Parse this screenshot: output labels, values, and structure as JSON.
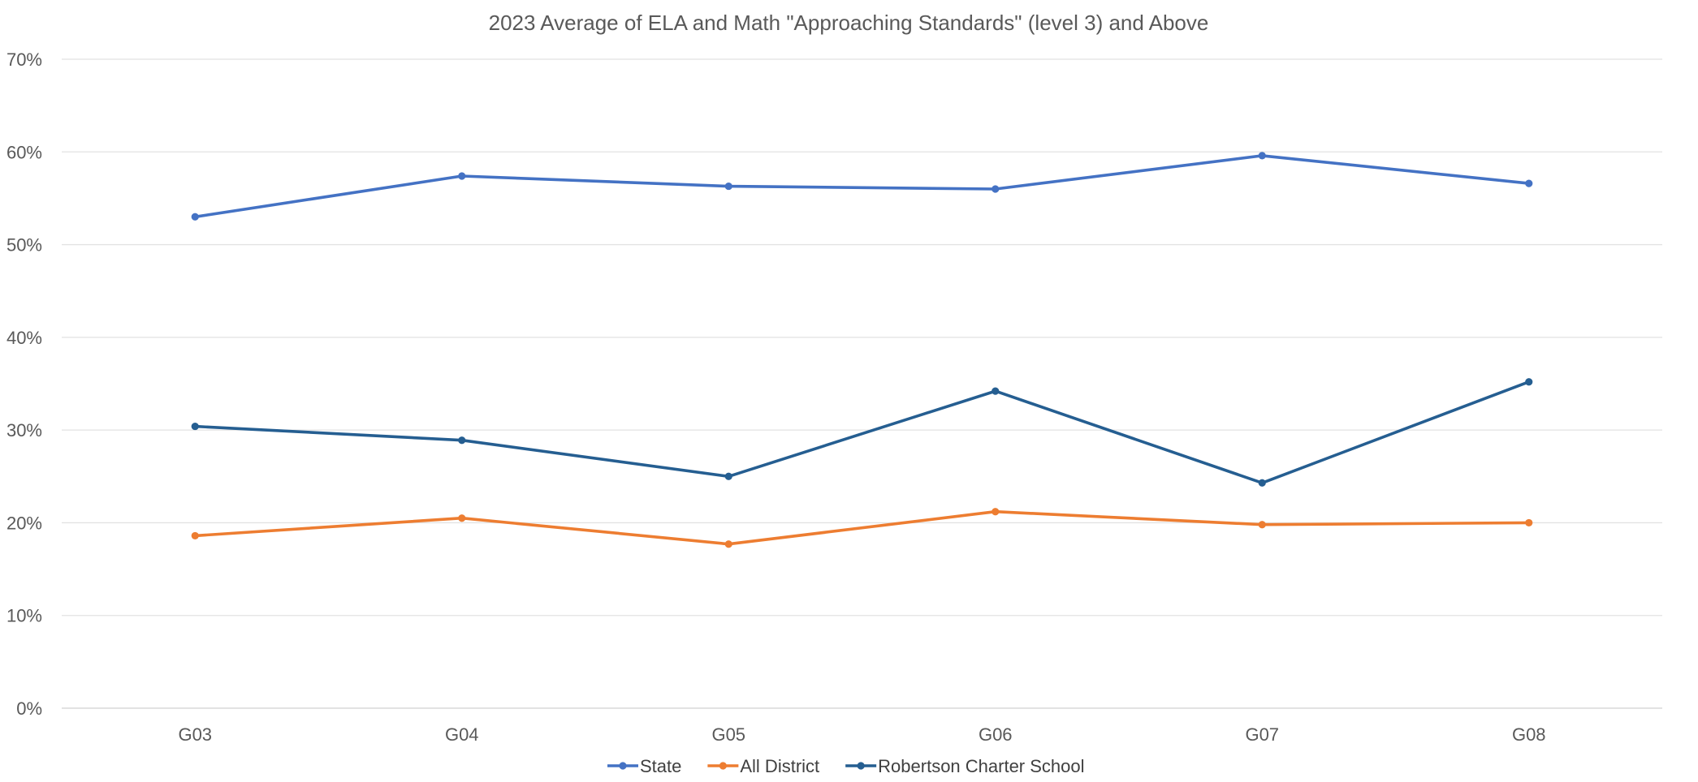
{
  "chart_data": {
    "type": "line",
    "title": "2023 Average of ELA and Math \"Approaching Standards\" (level 3) and Above",
    "xlabel": "",
    "ylabel": "",
    "categories": [
      "G03",
      "G04",
      "G05",
      "G06",
      "G07",
      "G08"
    ],
    "ylim": [
      0,
      70
    ],
    "y_ticks": [
      0,
      10,
      20,
      30,
      40,
      50,
      60,
      70
    ],
    "y_tick_labels": [
      "0%",
      "10%",
      "20%",
      "30%",
      "40%",
      "50%",
      "60%",
      "70%"
    ],
    "grid": true,
    "legend_position": "bottom",
    "series": [
      {
        "name": "State",
        "color": "#4472C4",
        "values": [
          53.0,
          57.4,
          56.3,
          56.0,
          59.6,
          56.6
        ]
      },
      {
        "name": "All District",
        "color": "#ED7D31",
        "values": [
          18.6,
          20.5,
          17.7,
          21.2,
          19.8,
          20.0
        ]
      },
      {
        "name": "Robertson Charter School",
        "color": "#255E91",
        "values": [
          30.4,
          28.9,
          25.0,
          34.2,
          24.3,
          35.2
        ]
      }
    ]
  }
}
